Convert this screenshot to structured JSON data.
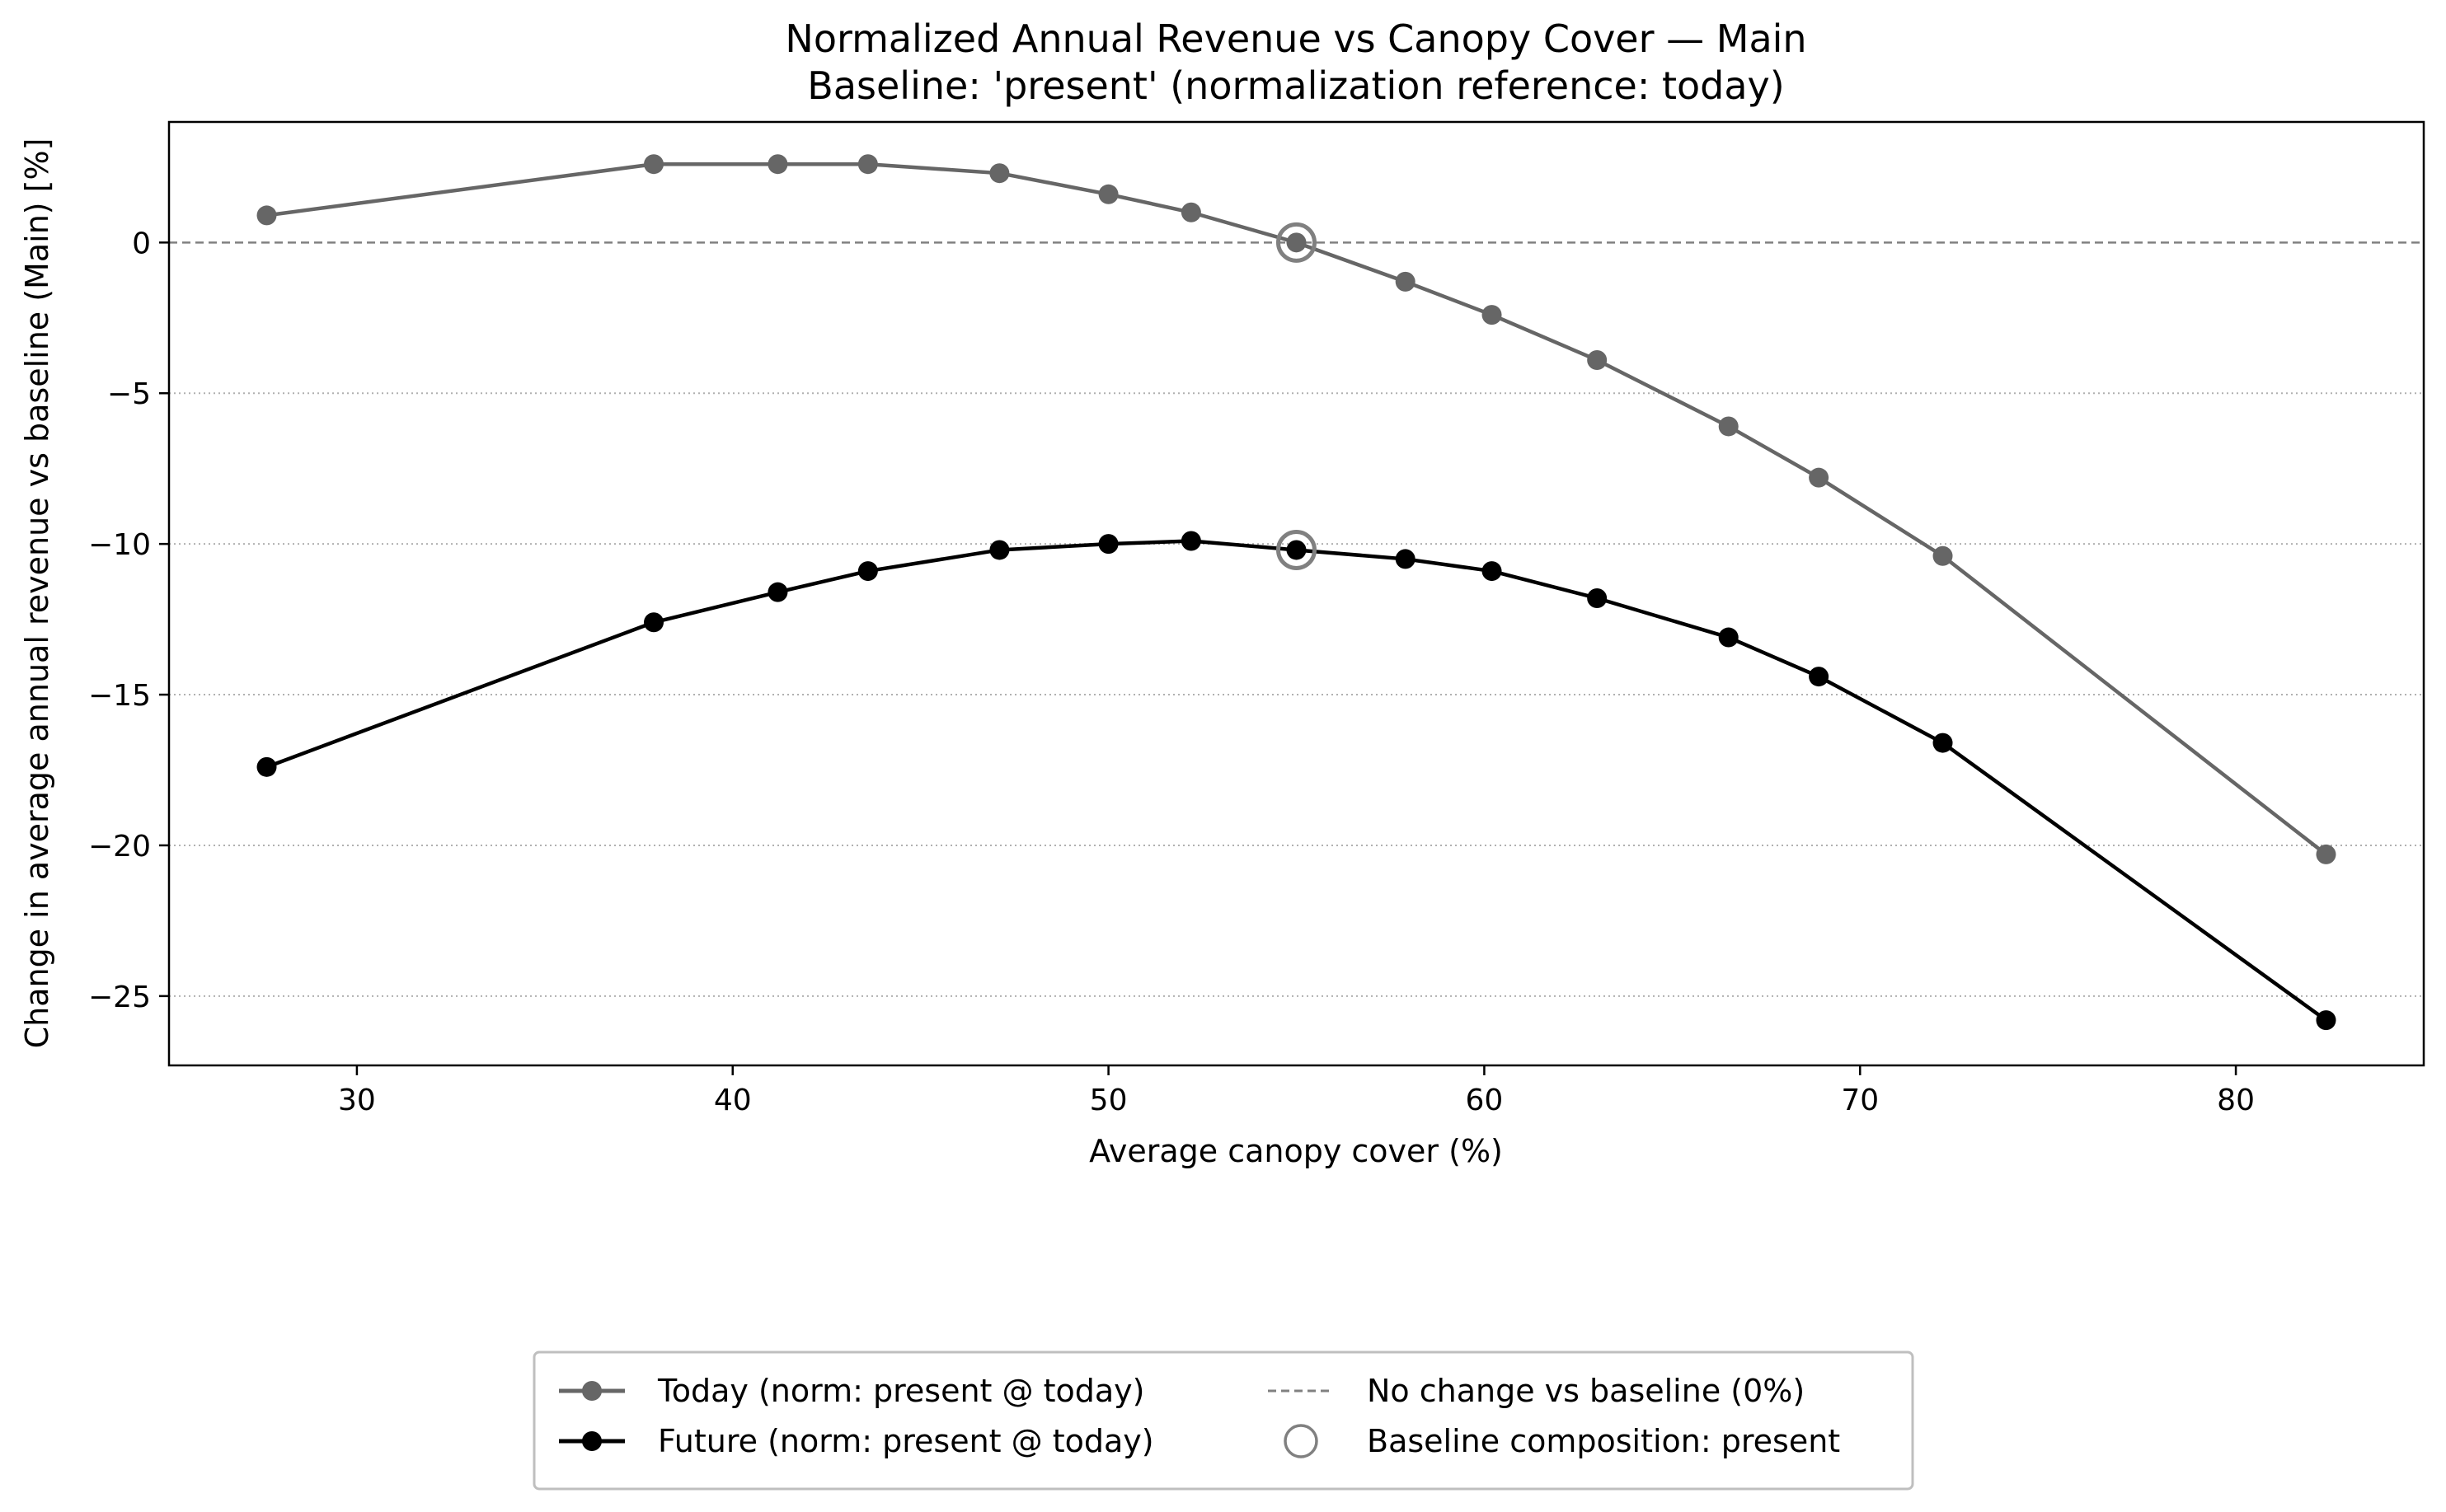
{
  "chart_data": {
    "type": "line",
    "title": "Normalized Annual Revenue vs Canopy Cover — Main",
    "subtitle": "Baseline: 'present' (normalization reference: today)",
    "xlabel": "Average canopy cover (%)",
    "ylabel": "Change in average annual revenue vs baseline (Main) [%]",
    "xlim": [
      25,
      85
    ],
    "ylim": [
      -27.3,
      4.0
    ],
    "xticks": [
      30,
      40,
      50,
      60,
      70,
      80
    ],
    "yticks": [
      0,
      -5,
      -10,
      -15,
      -20,
      -25
    ],
    "xtick_labels": [
      "30",
      "40",
      "50",
      "60",
      "70",
      "80"
    ],
    "ytick_labels": [
      "0",
      "−5",
      "−10",
      "−15",
      "−20",
      "−25"
    ],
    "grid": "horizontal dotted at y ticks",
    "legend_position": "bottom-center (below plot)",
    "x": [
      27.6,
      37.9,
      41.2,
      43.6,
      47.1,
      50.0,
      52.2,
      55.0,
      57.9,
      60.2,
      63.0,
      66.5,
      68.9,
      72.2,
      82.4
    ],
    "series": [
      {
        "name": "Today (norm: present @ today)",
        "color": "#666666",
        "values": [
          0.9,
          2.6,
          2.6,
          2.6,
          2.3,
          1.6,
          1.0,
          0.0,
          -1.3,
          -2.4,
          -3.9,
          -6.1,
          -7.8,
          -10.4,
          -20.3
        ]
      },
      {
        "name": "Future (norm: present @ today)",
        "color": "#000000",
        "values": [
          -17.4,
          -12.6,
          -11.6,
          -10.9,
          -10.2,
          -10.0,
          -9.9,
          -10.2,
          -10.5,
          -10.9,
          -11.8,
          -13.1,
          -14.4,
          -16.6,
          -25.8
        ]
      }
    ],
    "reference_line": {
      "label": "No change vs baseline (0%)",
      "y": 0,
      "color": "#808080",
      "style": "dashed"
    },
    "baseline_marker": {
      "label": "Baseline composition: present",
      "x": 55.0,
      "points": [
        0.0,
        -10.2
      ],
      "color": "#808080"
    }
  }
}
